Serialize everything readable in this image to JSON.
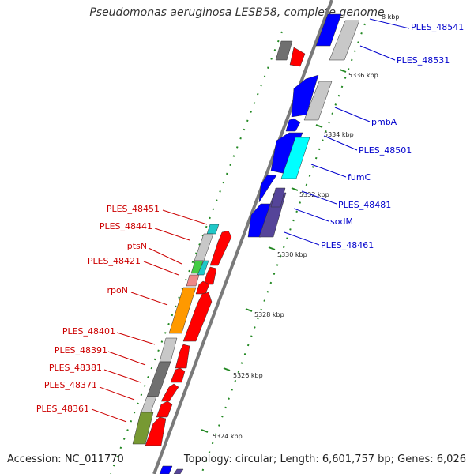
{
  "header": {
    "title": "Pseudomonas aeruginosa LESB58, complete genome"
  },
  "footer": {
    "accession": "Accession: NC_011770",
    "summary": "Topology: circular; Length: 6,601,757 bp; Genes: 6,026"
  },
  "colors": {
    "forward_label": "#cc0000",
    "reverse_label": "#0000cc",
    "backbone": "#7a7a7a",
    "tick": "#228822",
    "gene_red": "#ff0000",
    "gene_blue": "#0000ff",
    "gene_gray": "#c8c8c8",
    "gene_dark": "#707070",
    "gene_cyan": "#00ffff",
    "gene_teal": "#20c8c8",
    "gene_green": "#44cc44",
    "gene_pink": "#ee8888",
    "gene_orange": "#ff9900",
    "gene_olive": "#779933",
    "gene_slate": "#554499"
  },
  "kbp_labels": [
    "5336 kbp",
    "5334 kbp",
    "5332 kbp",
    "5330 kbp",
    "5328 kbp",
    "5326 kbp",
    "5324 kbp"
  ],
  "kbp_partial": "8 kbp",
  "forward_labels": [
    "PLES_48451",
    "PLES_48441",
    "ptsN",
    "PLES_48421",
    "rpoN",
    "PLES_48401",
    "PLES_48391",
    "PLES_48381",
    "PLES_48371",
    "PLES_48361"
  ],
  "reverse_labels": [
    "PLES_48541",
    "PLES_48531",
    "pmbA",
    "PLES_48501",
    "fumC",
    "PLES_48481",
    "sodM",
    "PLES_48461"
  ]
}
